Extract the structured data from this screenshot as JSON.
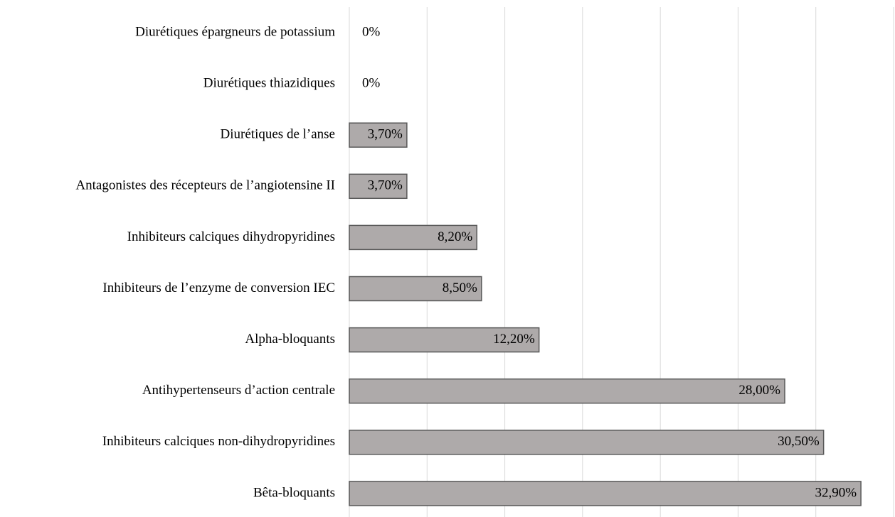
{
  "chart_data": {
    "type": "bar",
    "orientation": "horizontal",
    "categories": [
      "Diurétiques épargneurs de potassium",
      "Diurétiques thiazidiques",
      "Diurétiques de l’anse",
      "Antagonistes des récepteurs de l’angiotensine II",
      "Inhibiteurs calciques dihydropyridines",
      "Inhibiteurs de l’enzyme de conversion IEC",
      "Alpha-bloquants",
      "Antihypertenseurs d’action centrale",
      "Inhibiteurs calciques non-dihydropyridines",
      "Bêta-bloquants"
    ],
    "values": [
      0,
      0,
      3.7,
      3.7,
      8.2,
      8.5,
      12.2,
      28.0,
      30.5,
      32.9
    ],
    "value_labels": [
      "0%",
      "0%",
      "3,70%",
      "3,70%",
      "8,20%",
      "8,50%",
      "12,20%",
      "28,00%",
      "30,50%",
      "32,90%"
    ],
    "color": "#aeaaaa",
    "edge_color": "#595959",
    "xlim": [
      0,
      35
    ],
    "xticks": [
      0,
      5,
      10,
      15,
      20,
      25,
      30,
      35
    ],
    "grid": true
  }
}
